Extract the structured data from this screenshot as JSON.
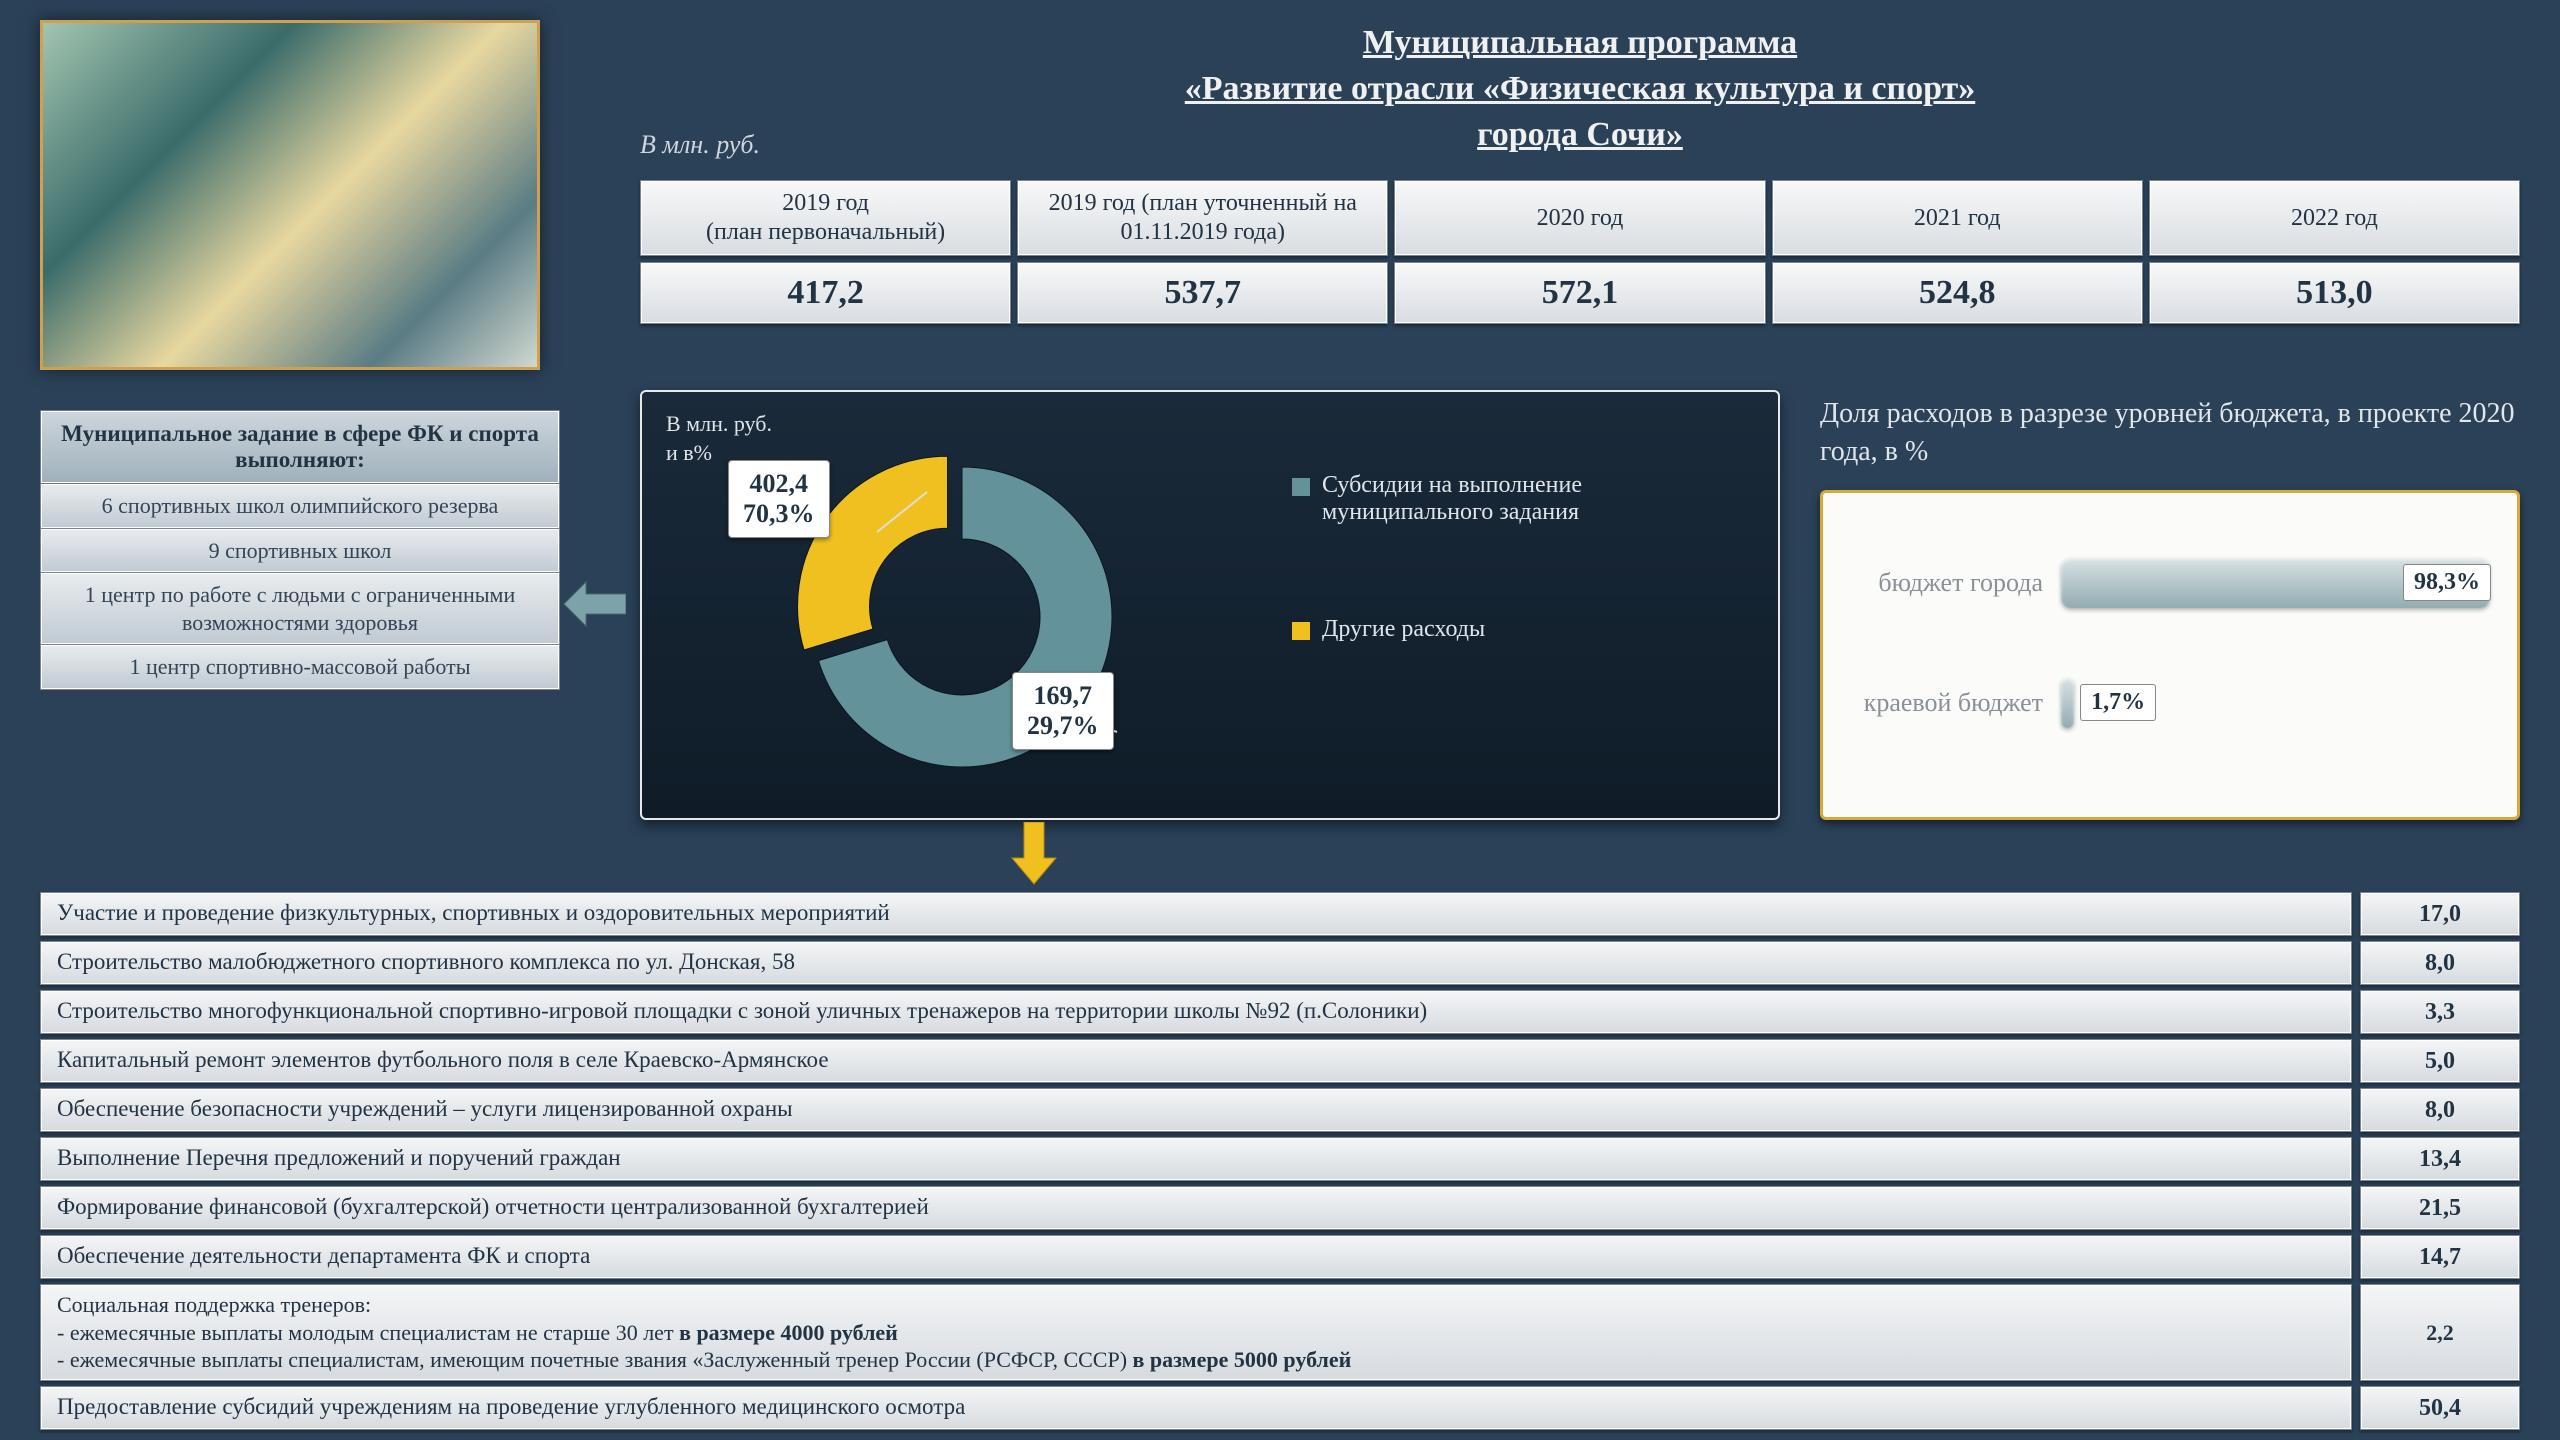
{
  "palette": {
    "page_bg": "#2a4158",
    "cell_bg_top": "#f4f5f6",
    "cell_bg_bot": "#d6dbe0",
    "cell_border": "#7a8590",
    "cell_text": "#223344",
    "accent_gold": "#d8a83a",
    "donut_bg": "#12202e",
    "donut_seg1": "#63929b",
    "donut_seg2": "#f0c020",
    "bar_color": "#9cb6bb"
  },
  "title": {
    "line1": "Муниципальная программа",
    "line2": "«Развитие отрасли «Физическая культура и спорт»",
    "line3": "города Сочи»"
  },
  "units_label": "В млн. руб.",
  "year_table": {
    "headers": [
      "2019 год\n(план первоначальный)",
      "2019 год (план уточненный на 01.11.2019 года)",
      "2020 год",
      "2021 год",
      "2022 год"
    ],
    "values": [
      "417,2",
      "537,7",
      "572,1",
      "524,8",
      "513,0"
    ]
  },
  "left_panel": {
    "title": "Муниципальное задание в сфере ФК и спорта выполняют:",
    "items": [
      "6 спортивных школ олимпийского резерва",
      "9 спортивных школ",
      "1 центр по работе с людьми с ограниченными возможностями здоровья",
      "1 центр спортивно-массовой работы"
    ]
  },
  "donut": {
    "units": "В млн. руб.\nи в%",
    "type": "donut",
    "inner_ratio": 0.5,
    "segments": [
      {
        "label": "Субсидии на выполнение муниципального задания",
        "value": 402.4,
        "pct": 70.3,
        "color": "#63929b",
        "callout_value": "402,4",
        "callout_pct": "70,3%"
      },
      {
        "label": "Другие расходы",
        "value": 169.7,
        "pct": 29.7,
        "color": "#f0c020",
        "callout_value": "169,7",
        "callout_pct": "29,7%"
      }
    ]
  },
  "right_chart": {
    "title": "Доля расходов в разрезе уровней бюджета, в проекте 2020 года, в %",
    "type": "bar-horizontal",
    "max": 100,
    "bars": [
      {
        "label": "бюджет города",
        "value": 98.3,
        "display": "98,3%"
      },
      {
        "label": "краевой бюджет",
        "value": 1.7,
        "display": "1,7%"
      }
    ]
  },
  "expenses": {
    "rows": [
      {
        "text": "Участие и проведение физкультурных, спортивных и оздоровительных мероприятий",
        "value": "17,0"
      },
      {
        "text": "Строительство малобюджетного спортивного комплекса по ул. Донская, 58",
        "value": "8,0"
      },
      {
        "text": "Строительство многофункциональной спортивно-игровой площадки с зоной уличных тренажеров на территории школы №92 (п.Солоники)",
        "value": "3,3"
      },
      {
        "text": "Капитальный ремонт элементов футбольного поля в селе Краевско-Армянское",
        "value": "5,0"
      },
      {
        "text": "Обеспечение безопасности учреждений – услуги лицензированной охраны",
        "value": "8,0"
      },
      {
        "text": "Выполнение Перечня предложений и поручений граждан",
        "value": "13,4"
      },
      {
        "text": "Формирование финансовой (бухгалтерской) отчетности централизованной бухгалтерией",
        "value": "21,5"
      },
      {
        "text": "Обеспечение деятельности департамента ФК и спорта",
        "value": "14,7"
      },
      {
        "text": "Социальная поддержка тренеров:\n- ежемесячные выплаты молодым специалистам не старше 30 лет в размере 4000 рублей\n- ежемесячные выплаты специалистам, имеющим почетные звания «Заслуженный тренер России (РСФСР, СССР) в размере 5000 рублей",
        "value": "2,2",
        "big": true
      },
      {
        "text": "Предоставление субсидий учреждениям на проведение углубленного медицинского осмотра",
        "value": "50,4"
      }
    ]
  }
}
